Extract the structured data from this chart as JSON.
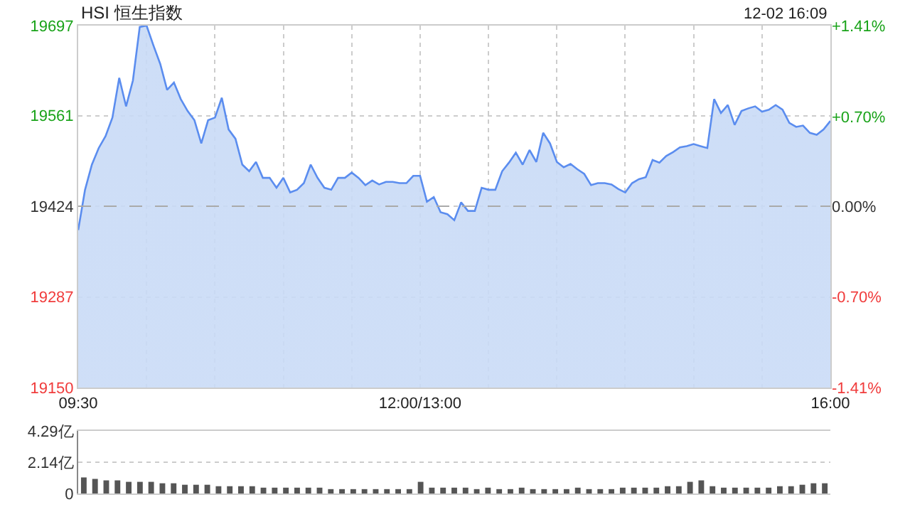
{
  "chart_data": [
    {
      "type": "area",
      "title": "HSI 恒生指数",
      "annotations": [
        "12-02 16:09"
      ],
      "categories": [
        "09:30",
        null,
        null,
        null,
        null,
        null,
        null,
        null,
        null,
        null,
        null,
        null,
        null,
        null,
        null,
        null,
        null,
        null,
        null,
        null,
        null,
        null,
        null,
        null,
        null,
        null,
        null,
        null,
        null,
        null,
        null,
        null,
        null,
        null,
        null,
        null,
        null,
        null,
        null,
        null,
        null,
        null,
        null,
        null,
        null,
        null,
        null,
        null,
        null,
        null,
        "12:00/13:00",
        null,
        null,
        null,
        null,
        null,
        null,
        null,
        null,
        null,
        null,
        null,
        null,
        null,
        null,
        null,
        null,
        null,
        null,
        null,
        null,
        null,
        null,
        null,
        null,
        null,
        null,
        null,
        null,
        null,
        null,
        null,
        null,
        null,
        null,
        null,
        null,
        null,
        null,
        null,
        null,
        null,
        null,
        null,
        null,
        null,
        null,
        null,
        null,
        null,
        null,
        null,
        null,
        null,
        null,
        null,
        null,
        null,
        null,
        null,
        "16:00"
      ],
      "series": [
        {
          "color": "#5b8def",
          "values": [
            19388,
            19449,
            19487,
            19512,
            19530,
            19558,
            19618,
            19575,
            19614,
            19695,
            19697,
            19667,
            19639,
            19600,
            19611,
            19586,
            19568,
            19554,
            19519,
            19554,
            19558,
            19588,
            19540,
            19526,
            19487,
            19477,
            19491,
            19467,
            19467,
            19452,
            19467,
            19445,
            19449,
            19459,
            19487,
            19467,
            19452,
            19449,
            19467,
            19467,
            19475,
            19467,
            19456,
            19463,
            19457,
            19461,
            19461,
            19459,
            19459,
            19470,
            19470,
            19431,
            19438,
            19415,
            19412,
            19403,
            19430,
            19417,
            19417,
            19452,
            19449,
            19449,
            19477,
            19490,
            19505,
            19487,
            19509,
            19491,
            19535,
            19519,
            19491,
            19483,
            19488,
            19480,
            19473,
            19456,
            19459,
            19459,
            19457,
            19450,
            19445,
            19459,
            19465,
            19468,
            19494,
            19490,
            19500,
            19506,
            19513,
            19515,
            19518,
            19515,
            19512,
            19586,
            19565,
            19577,
            19547,
            19568,
            19572,
            19575,
            19567,
            19570,
            19577,
            19570,
            19550,
            19544,
            19546,
            19535,
            19532,
            19540,
            19553
          ]
        }
      ],
      "ylim": [
        19150,
        19697
      ],
      "yticks": [
        19150,
        19287,
        19424,
        19561,
        19697
      ],
      "y2lim": [
        -1.41,
        1.41
      ],
      "y2ticks": [
        {
          "value": 1.41,
          "label": "+1.41%"
        },
        {
          "value": 0.7,
          "label": "+0.70%"
        },
        {
          "value": 0,
          "label": "0.00%"
        },
        {
          "value": -0.7,
          "label": "-0.70%"
        },
        {
          "value": -1.41,
          "label": "-1.41%"
        }
      ],
      "ref_lines": [
        {
          "axis": "y",
          "value": 19424,
          "color": "#aaaaaa",
          "line_style": "dashed"
        }
      ],
      "grid": true,
      "line_style": "solid",
      "marker": "none",
      "legend": false
    },
    {
      "type": "bar",
      "categories": [
        null,
        null,
        null,
        null,
        null,
        null,
        null,
        null,
        null,
        null,
        null,
        null,
        null,
        null,
        null,
        null,
        null,
        null,
        null,
        null,
        null,
        null,
        null,
        null,
        null,
        null,
        null,
        null,
        null,
        null,
        null,
        null,
        null,
        null,
        null,
        null,
        null,
        null,
        null,
        null,
        null,
        null,
        null,
        null,
        null,
        null,
        null,
        null,
        null,
        null,
        null,
        null,
        null,
        null,
        null,
        null,
        null,
        null,
        null,
        null,
        null,
        null,
        null,
        null,
        null,
        null,
        null
      ],
      "series": [
        {
          "color": "#555555",
          "values": [
            1.1,
            1.0,
            0.9,
            0.9,
            0.8,
            0.8,
            0.8,
            0.7,
            0.7,
            0.6,
            0.6,
            0.6,
            0.5,
            0.5,
            0.5,
            0.5,
            0.4,
            0.4,
            0.4,
            0.4,
            0.4,
            0.4,
            0.3,
            0.3,
            0.3,
            0.3,
            0.3,
            0.3,
            0.3,
            0.3,
            0.8,
            0.4,
            0.4,
            0.4,
            0.4,
            0.3,
            0.4,
            0.3,
            0.3,
            0.4,
            0.3,
            0.3,
            0.3,
            0.3,
            0.4,
            0.3,
            0.3,
            0.3,
            0.4,
            0.4,
            0.4,
            0.4,
            0.5,
            0.5,
            0.8,
            0.9,
            0.5,
            0.4,
            0.4,
            0.4,
            0.4,
            0.4,
            0.5,
            0.5,
            0.6,
            0.7,
            0.7
          ]
        }
      ],
      "ylim": [
        0,
        4.29
      ],
      "yticks": [
        0,
        {
          "value": 2.14,
          "label": "2.14亿"
        },
        {
          "value": 4.29,
          "label": "4.29亿"
        }
      ],
      "grid": "y",
      "tick_labels": "y",
      "legend": false
    }
  ]
}
